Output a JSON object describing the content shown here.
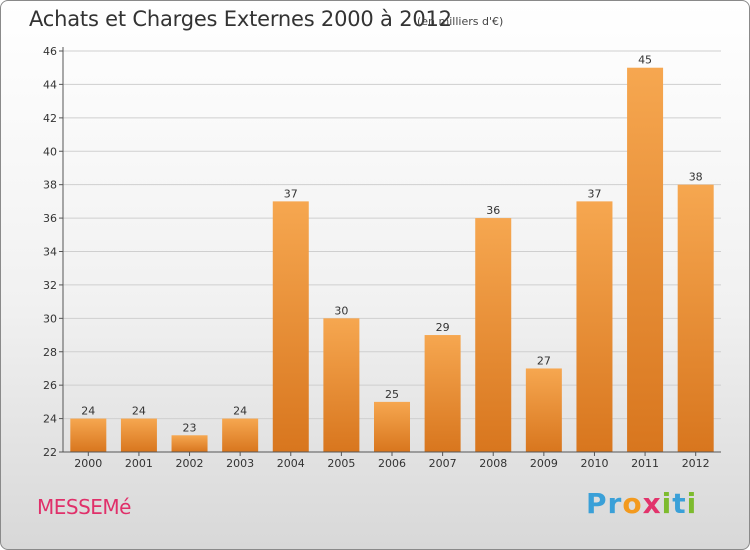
{
  "header": {
    "title": "Achats et Charges Externes 2000 à 2012",
    "subtitle": "(en milliers d'€)"
  },
  "footer": {
    "commune": "MESSEMé",
    "brand_letters": [
      "P",
      "r",
      "o",
      "x",
      "i",
      "t",
      "i"
    ],
    "brand_colors": [
      "#3aa0d8",
      "#3aa0d8",
      "#f39a1e",
      "#e2336b",
      "#7dbb2e",
      "#3aa0d8",
      "#7dbb2e"
    ]
  },
  "chart_data": {
    "type": "bar",
    "title": "Achats et Charges Externes 2000 à 2012",
    "subtitle": "(en milliers d'€)",
    "categories": [
      "2000",
      "2001",
      "2002",
      "2003",
      "2004",
      "2005",
      "2006",
      "2007",
      "2008",
      "2009",
      "2010",
      "2011",
      "2012"
    ],
    "values": [
      24,
      24,
      23,
      24,
      37,
      30,
      25,
      29,
      36,
      27,
      37,
      45,
      38
    ],
    "ylim": [
      22,
      46
    ],
    "yticks": [
      22,
      24,
      26,
      28,
      30,
      32,
      34,
      36,
      38,
      40,
      42,
      44,
      46
    ],
    "grid": true,
    "bar_color_top": "#f6a750",
    "bar_color_bottom": "#d8761e"
  }
}
